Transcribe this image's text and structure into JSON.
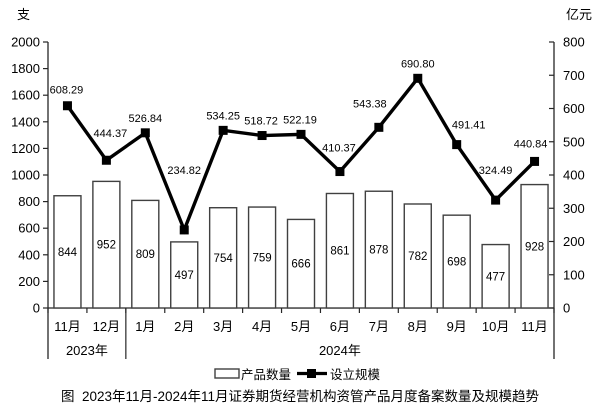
{
  "chart_data": {
    "type": "bar",
    "caption": "图  2023年11月-2024年11月证券期货经营机构资管产品月度备案数量及规模趋势",
    "categories": [
      "11月",
      "12月",
      "1月",
      "2月",
      "3月",
      "4月",
      "5月",
      "6月",
      "7月",
      "8月",
      "9月",
      "10月",
      "11月"
    ],
    "year_groups": [
      {
        "label": "2023年",
        "span": 2
      },
      {
        "label": "2024年",
        "span": 11
      }
    ],
    "series": [
      {
        "name": "产品数量",
        "type": "bar",
        "axis": "left",
        "values": [
          844,
          952,
          809,
          497,
          754,
          759,
          666,
          861,
          878,
          782,
          698,
          477,
          928
        ]
      },
      {
        "name": "设立规模",
        "type": "line",
        "axis": "right",
        "values": [
          608.29,
          444.37,
          526.84,
          234.82,
          534.25,
          518.72,
          522.19,
          410.37,
          543.38,
          690.8,
          491.41,
          324.49,
          440.84
        ]
      }
    ],
    "left_axis": {
      "unit": "支",
      "min": 0,
      "max": 2000,
      "step": 200
    },
    "right_axis": {
      "unit": "亿元",
      "min": 0,
      "max": 800,
      "step": 100
    },
    "legend": {
      "items": [
        "产品数量",
        "设立规模"
      ],
      "position": "bottom"
    },
    "grid": false,
    "colors": {
      "bar_fill": "#ffffff",
      "bar_stroke": "#404040",
      "line": "#000000",
      "axis": "#262626",
      "text": "#000000",
      "background": "#ffffff"
    }
  }
}
